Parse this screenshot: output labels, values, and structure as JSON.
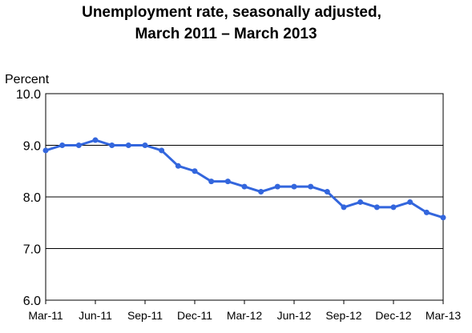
{
  "chart_data": {
    "type": "line",
    "title": "Unemployment rate, seasonally adjusted,",
    "subtitle": "March 2011 – March 2013",
    "xlabel": "",
    "ylabel": "Percent",
    "ylim": [
      6.0,
      10.0
    ],
    "yticks": [
      "6.0",
      "7.0",
      "8.0",
      "9.0",
      "10.0"
    ],
    "xtick_labels": [
      "Mar-11",
      "Jun-11",
      "Sep-11",
      "Dec-11",
      "Mar-12",
      "Jun-12",
      "Sep-12",
      "Dec-12",
      "Mar-13"
    ],
    "grid": true,
    "legend": "none",
    "color": "#3366dd",
    "series": [
      {
        "name": "",
        "x": [
          "Mar-11",
          "Apr-11",
          "May-11",
          "Jun-11",
          "Jul-11",
          "Aug-11",
          "Sep-11",
          "Oct-11",
          "Nov-11",
          "Dec-11",
          "Jan-12",
          "Feb-12",
          "Mar-12",
          "Apr-12",
          "May-12",
          "Jun-12",
          "Jul-12",
          "Aug-12",
          "Sep-12",
          "Oct-12",
          "Nov-12",
          "Dec-12",
          "Jan-13",
          "Feb-13",
          "Mar-13"
        ],
        "values": [
          8.9,
          9.0,
          9.0,
          9.1,
          9.0,
          9.0,
          9.0,
          8.9,
          8.6,
          8.5,
          8.3,
          8.3,
          8.2,
          8.1,
          8.2,
          8.2,
          8.2,
          8.1,
          7.8,
          7.9,
          7.8,
          7.8,
          7.9,
          7.7,
          7.6
        ]
      }
    ]
  }
}
